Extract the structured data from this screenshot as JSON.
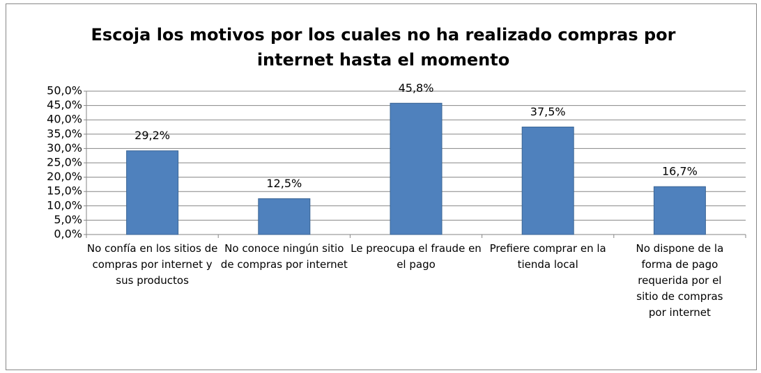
{
  "chart_data": {
    "type": "bar",
    "title": "Escoja los motivos por los cuales no ha realizado compras por internet hasta el momento",
    "categories": [
      "No confía en los sitios de compras por internet y sus productos",
      "No conoce ningún sitio de compras por internet",
      "Le preocupa el fraude en el pago",
      "Prefiere comprar en la tienda local",
      "No dispone de la forma de pago requerida por el sitio de compras por internet"
    ],
    "values": [
      29.2,
      12.5,
      45.8,
      37.5,
      16.7
    ],
    "value_labels": [
      "29,2%",
      "12,5%",
      "45,8%",
      "37,5%",
      "16,7%"
    ],
    "color": "#4f81bd",
    "ylim": [
      0,
      50
    ],
    "yticks": [
      {
        "value": 0,
        "label": "0,0%"
      },
      {
        "value": 5,
        "label": "5,0%"
      },
      {
        "value": 10,
        "label": "10,0%"
      },
      {
        "value": 15,
        "label": "15,0%"
      },
      {
        "value": 20,
        "label": "20,0%"
      },
      {
        "value": 25,
        "label": "25,0%"
      },
      {
        "value": 30,
        "label": "30,0%"
      },
      {
        "value": 35,
        "label": "35,0%"
      },
      {
        "value": 40,
        "label": "40,0%"
      },
      {
        "value": 45,
        "label": "45,0%"
      },
      {
        "value": 50,
        "label": "50,0%"
      }
    ],
    "grid": true
  }
}
